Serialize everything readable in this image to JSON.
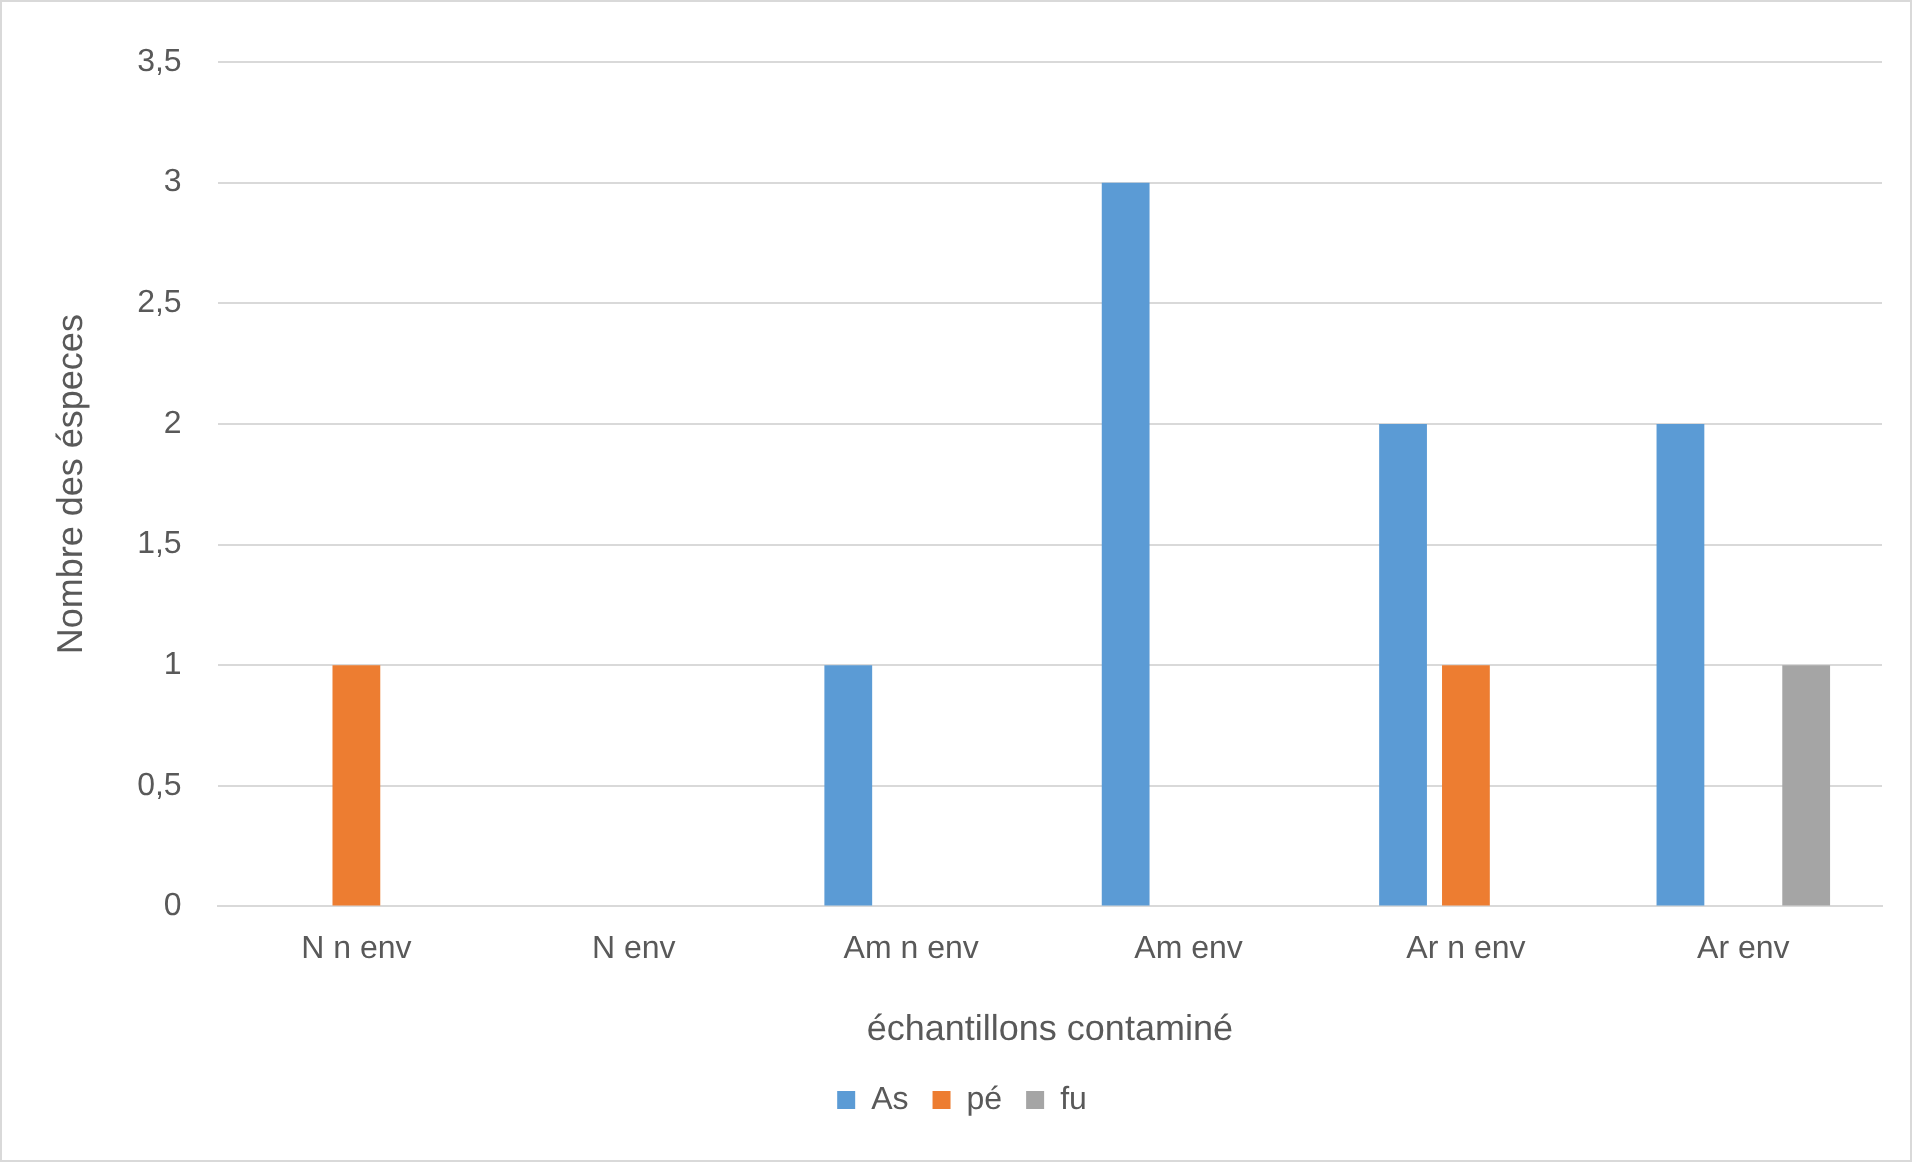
{
  "chart_data": {
    "type": "bar",
    "xlabel": "échantillons contaminé",
    "ylabel": "Nombre des éspeces",
    "categories": [
      "N n env",
      "N env",
      "Am n env",
      "Am env",
      "Ar n env",
      "Ar env"
    ],
    "series": [
      {
        "name": "As",
        "color": "#5b9bd5",
        "values": [
          0,
          0,
          1,
          3,
          2,
          2
        ]
      },
      {
        "name": "pé",
        "color": "#ed7d31",
        "values": [
          1,
          0,
          0,
          0,
          1,
          0
        ]
      },
      {
        "name": "fu",
        "color": "#a5a5a5",
        "values": [
          0,
          0,
          0,
          0,
          0,
          1
        ]
      }
    ],
    "ylim": [
      0,
      3.5
    ],
    "yticks": [
      {
        "value": 0,
        "label": "0"
      },
      {
        "value": 0.5,
        "label": "0,5"
      },
      {
        "value": 1,
        "label": "1"
      },
      {
        "value": 1.5,
        "label": "1,5"
      },
      {
        "value": 2,
        "label": "2"
      },
      {
        "value": 2.5,
        "label": "2,5"
      },
      {
        "value": 3,
        "label": "3"
      },
      {
        "value": 3.5,
        "label": "3,5"
      }
    ],
    "grid": "y",
    "legend": "bottom"
  }
}
